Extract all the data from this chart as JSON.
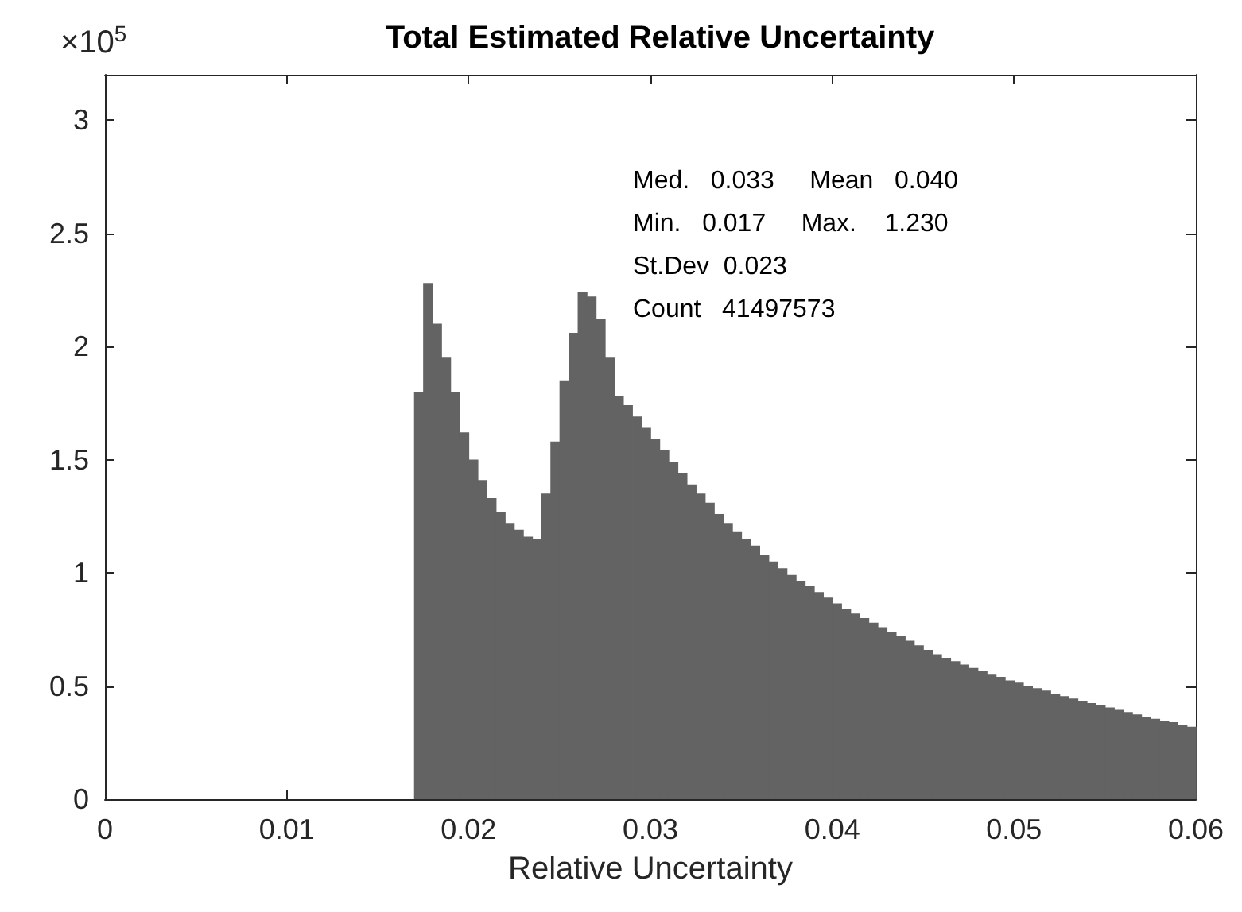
{
  "chart_data": {
    "type": "histogram",
    "title": "Total Estimated Relative Uncertainty",
    "xlabel": "Relative Uncertainty",
    "color": "#636363",
    "bins": [
      0.017,
      0.0175,
      0.018,
      0.0185,
      0.019,
      0.0195,
      0.02,
      0.0205,
      0.021,
      0.0215,
      0.022,
      0.0225,
      0.023,
      0.0235,
      0.024,
      0.0245,
      0.025,
      0.0255,
      0.026,
      0.0265,
      0.027,
      0.0275,
      0.028,
      0.0285,
      0.029,
      0.0295,
      0.03,
      0.0305,
      0.031,
      0.0315,
      0.032,
      0.0325,
      0.033,
      0.0335,
      0.034,
      0.0345,
      0.035,
      0.0355,
      0.036,
      0.0365,
      0.037,
      0.0375,
      0.038,
      0.0385,
      0.039,
      0.0395,
      0.04,
      0.0405,
      0.041,
      0.0415,
      0.042,
      0.0425,
      0.043,
      0.0435,
      0.044,
      0.0445,
      0.045,
      0.0455,
      0.046,
      0.0465,
      0.047,
      0.0475,
      0.048,
      0.0485,
      0.049,
      0.0495,
      0.05,
      0.0505,
      0.051,
      0.0515,
      0.052,
      0.0525,
      0.053,
      0.0535,
      0.054,
      0.0545,
      0.055,
      0.0555,
      0.056,
      0.0565,
      0.057,
      0.0575,
      0.058,
      0.0585,
      0.059,
      0.0595,
      0.06
    ],
    "values": [
      1.8,
      2.28,
      2.1,
      1.95,
      1.8,
      1.62,
      1.5,
      1.41,
      1.33,
      1.27,
      1.22,
      1.19,
      1.16,
      1.15,
      1.35,
      1.58,
      1.85,
      2.06,
      2.24,
      2.22,
      2.12,
      1.95,
      1.78,
      1.74,
      1.69,
      1.64,
      1.59,
      1.54,
      1.49,
      1.44,
      1.39,
      1.35,
      1.31,
      1.26,
      1.22,
      1.18,
      1.15,
      1.12,
      1.08,
      1.05,
      1.02,
      0.99,
      0.965,
      0.94,
      0.915,
      0.89,
      0.865,
      0.84,
      0.82,
      0.8,
      0.78,
      0.76,
      0.74,
      0.72,
      0.7,
      0.68,
      0.66,
      0.64,
      0.625,
      0.61,
      0.595,
      0.58,
      0.565,
      0.55,
      0.54,
      0.525,
      0.515,
      0.5,
      0.49,
      0.48,
      0.465,
      0.455,
      0.445,
      0.435,
      0.425,
      0.415,
      0.405,
      0.395,
      0.385,
      0.375,
      0.365,
      0.355,
      0.345,
      0.34,
      0.33,
      0.32
    ],
    "xlim": [
      0,
      0.06
    ],
    "xticks": [
      0,
      0.01,
      0.02,
      0.03,
      0.04,
      0.05,
      0.06
    ],
    "ylim": [
      0,
      3.2
    ],
    "yticks": [
      0,
      0.5,
      1,
      1.5,
      2,
      2.5,
      3
    ],
    "annotations": [
      "×10$^{5}$",
      "Med.   0.033     Mean   0.040",
      "Min.   0.017     Max.    1.230",
      "St.Dev  0.023",
      "Count   41497573"
    ],
    "grid": false
  }
}
